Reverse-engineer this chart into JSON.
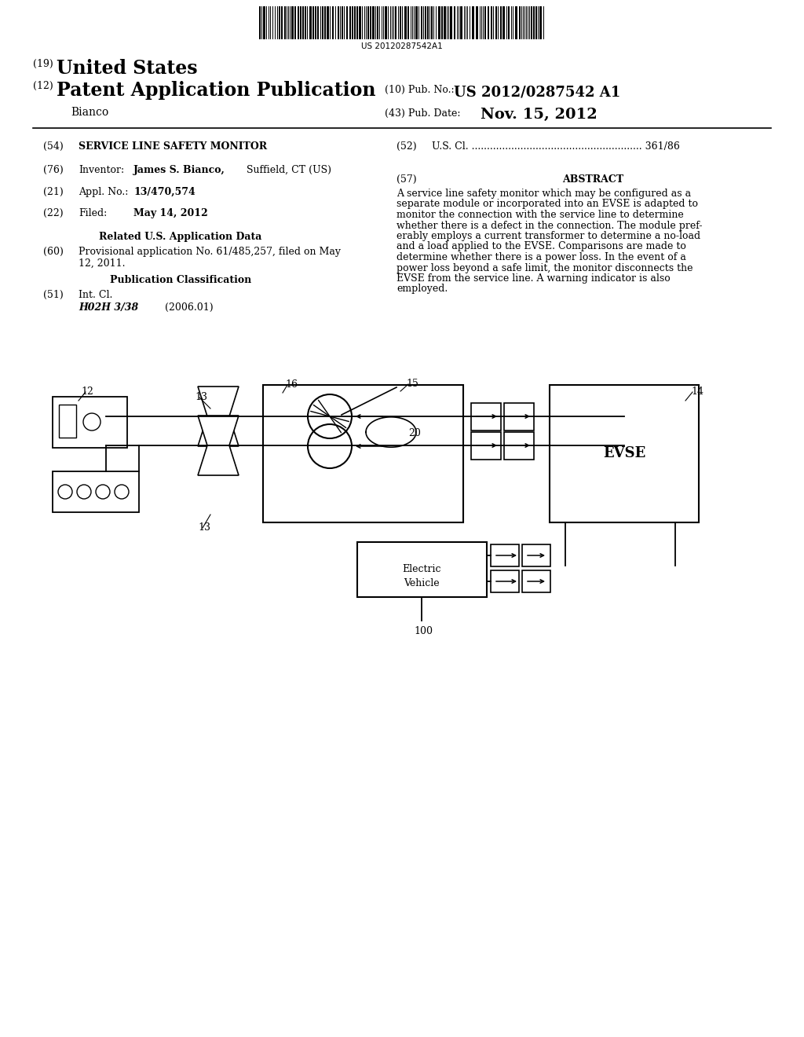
{
  "barcode_text": "US 20120287542A1",
  "title_19": "(19) United States",
  "title_12_prefix": "(12)",
  "title_12_main": "Patent Application Publication",
  "pub_no_label": "(10) Pub. No.:",
  "pub_no_value": "US 2012/0287542 A1",
  "inventor_name": "Bianco",
  "pub_date_label": "(43) Pub. Date:",
  "pub_date_value": "Nov. 15, 2012",
  "field_54_label": "(54)",
  "field_54_value": "SERVICE LINE SAFETY MONITOR",
  "field_52_label": "(52)",
  "field_52_dots": "U.S. Cl. ........................................................",
  "field_52_num": "361/86",
  "field_76_label": "(76)",
  "field_76_inventor": "Inventor:",
  "field_76_name": "James S. Bianco,",
  "field_76_rest": " Suffield, CT (US)",
  "field_21_label": "(21)",
  "field_21_appl": "Appl. No.:",
  "field_21_value": "13/470,574",
  "field_57_label": "(57)",
  "field_57_title": "ABSTRACT",
  "abstract_lines": [
    "A service line safety monitor which may be configured as a",
    "separate module or incorporated into an EVSE is adapted to",
    "monitor the connection with the service line to determine",
    "whether there is a defect in the connection. The module pref-",
    "erably employs a current transformer to determine a no-load",
    "and a load applied to the EVSE. Comparisons are made to",
    "determine whether there is a power loss. In the event of a",
    "power loss beyond a safe limit, the monitor disconnects the",
    "EVSE from the service line. A warning indicator is also",
    "employed."
  ],
  "field_22_label": "(22)",
  "field_22_filed": "Filed:",
  "field_22_value": "May 14, 2012",
  "related_heading": "Related U.S. Application Data",
  "field_60_label": "(60)",
  "field_60_line1": "Provisional application No. 61/485,257, filed on May",
  "field_60_line2": "12, 2011.",
  "pub_class_heading": "Publication Classification",
  "field_51_label": "(51)",
  "field_51_int": "Int. Cl.",
  "field_51_class": "H02H 3/38",
  "field_51_year": "(2006.01)",
  "background_color": "#ffffff"
}
